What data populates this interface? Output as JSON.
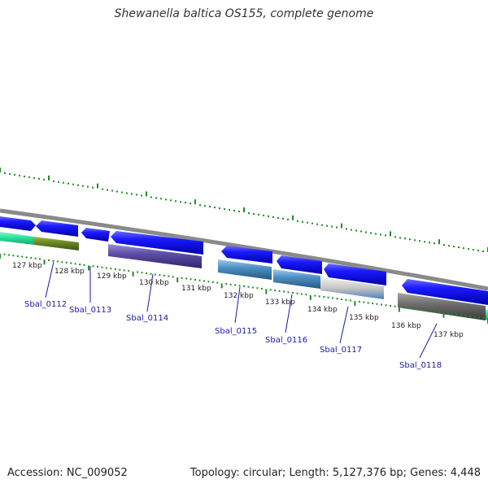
{
  "header": {
    "title": "Shewanella baltica OS155, complete genome"
  },
  "footer": {
    "accession": "Accession: NC_009052",
    "summary": "Topology: circular; Length: 5,127,376 bp; Genes: 4,448"
  },
  "colors": {
    "forward_gene": "#1010e0",
    "tick": "#228b22",
    "backbone": "#888888",
    "label": "#1a1aa6"
  },
  "kbp_labels": [
    "127 kbp",
    "128 kbp",
    "129 kbp",
    "130 kbp",
    "131 kbp",
    "132 kbp",
    "133 kbp",
    "134 kbp",
    "135 kbp",
    "136 kbp",
    "137 kbp"
  ],
  "genes": [
    "Sbal_0112",
    "Sbal_0113",
    "Sbal_0114",
    "Sbal_0115",
    "Sbal_0116",
    "Sbal_0117",
    "Sbal_0118"
  ]
}
